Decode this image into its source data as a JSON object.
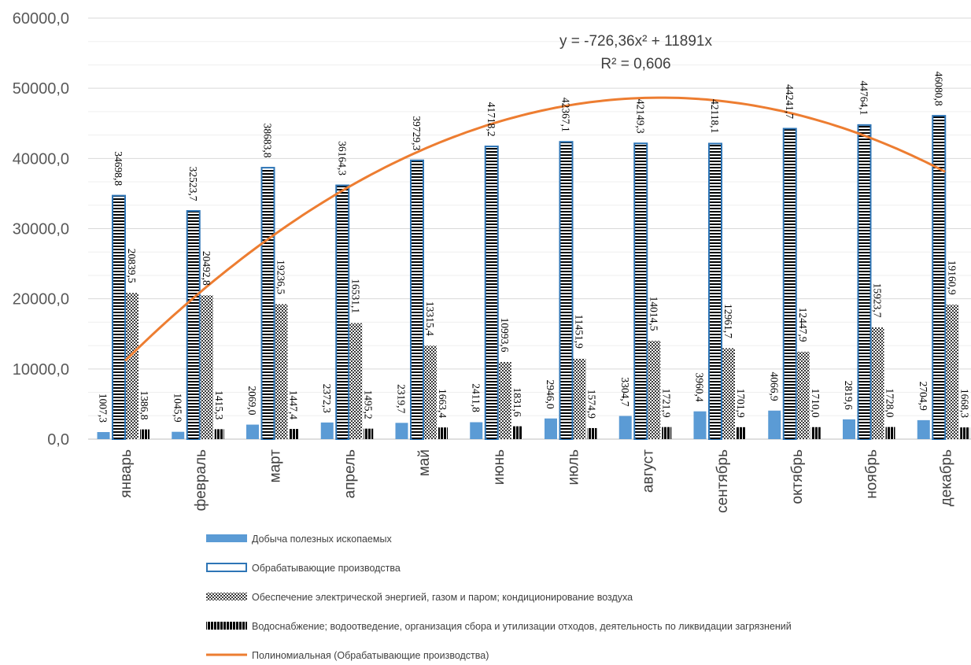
{
  "chart_data": {
    "type": "bar",
    "categories": [
      "январь",
      "февраль",
      "март",
      "апрель",
      "май",
      "июнь",
      "июль",
      "август",
      "сентябрь",
      "октябрь",
      "ноябрь",
      "декабрь"
    ],
    "series": [
      {
        "name": "Добыча полезных ископаемых",
        "values": [
          1007.3,
          1045.9,
          2069.0,
          2372.3,
          2319.7,
          2411.8,
          2946.0,
          3304.7,
          3960.4,
          4066.9,
          2819.6,
          2704.9
        ],
        "labels": [
          "1007,3",
          "1045,9",
          "2069,0",
          "2372,3",
          "2319,7",
          "2411,8",
          "2946,0",
          "3304,7",
          "3960,4",
          "4066,9",
          "2819,6",
          "2704,9"
        ],
        "color": "#5B9BD5"
      },
      {
        "name": "Обрабатывающие производства",
        "values": [
          34698.8,
          32523.7,
          38683.8,
          36164.3,
          39729.3,
          41718.2,
          42367.1,
          42149.3,
          42118.1,
          44241.7,
          44764.1,
          46080.8
        ],
        "labels": [
          "34698,8",
          "32523,7",
          "38683,8",
          "36164,3",
          "39729,3",
          "41718,2",
          "42367,1",
          "42149,3",
          "42118,1",
          "44241,7",
          "44764,1",
          "46080,8"
        ],
        "color": "#2E75B6"
      },
      {
        "name": "Обеспечение электрической энергией, газом и паром; кондиционирование воздуха",
        "values": [
          20839.5,
          20492.8,
          19236.5,
          16531.1,
          13315.4,
          10993.6,
          11451.9,
          14014.5,
          12961.7,
          12447.9,
          15923.7,
          19160.9
        ],
        "labels": [
          "20839,5",
          "20492,8",
          "19236,5",
          "16531,1",
          "13315,4",
          "10993,6",
          "11451,9",
          "14014,5",
          "12961,7",
          "12447,9",
          "15923,7",
          "19160,9"
        ],
        "color": "#404040"
      },
      {
        "name": "Водоснабжение; водоотведение, организация сбора и утилизации отходов, деятельность по ликвидации загрязнений",
        "values": [
          1386.8,
          1415.3,
          1447.4,
          1495.2,
          1663.4,
          1831.6,
          1574.9,
          1721.9,
          1701.9,
          1710.0,
          1728.0,
          1668.3
        ],
        "labels": [
          "1386,8",
          "1415,3",
          "1447,4",
          "1495,2",
          "1663,4",
          "1831,6",
          "1574,9",
          "1721,9",
          "1701,9",
          "1710,0",
          "1728,0",
          "1668,3"
        ],
        "color": "#000000"
      }
    ],
    "trendline": {
      "name": "Полиномиальная (Обрабатывающие производства)",
      "type": "polynomial",
      "a": -726.36,
      "b": 11891,
      "equation": "y = -726,36x² + 11891x",
      "r2": "R² = 0,606",
      "color": "#ED7D31"
    },
    "ylim": [
      0,
      60000
    ],
    "yticks": [
      "0,0",
      "10000,0",
      "20000,0",
      "30000,0",
      "40000,0",
      "50000,0",
      "60000,0"
    ],
    "grid": true,
    "legend_position": "bottom",
    "title": "",
    "xlabel": "",
    "ylabel": ""
  }
}
